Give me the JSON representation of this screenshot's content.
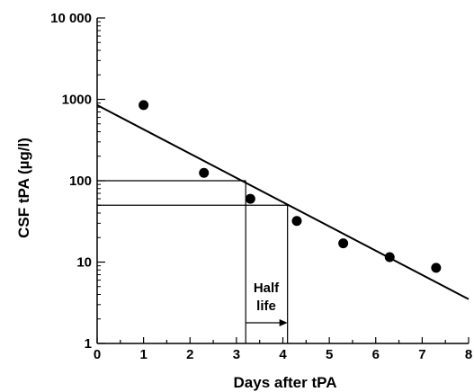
{
  "chart_data": {
    "type": "scatter",
    "xlabel": "Days after tPA",
    "ylabel": "CSF tPA (µg/l)",
    "xlim": [
      0,
      8
    ],
    "ylim": [
      1,
      10000
    ],
    "yscale": "log",
    "x_ticks": [
      0,
      1,
      2,
      3,
      4,
      5,
      6,
      7,
      8
    ],
    "x_tick_labels": [
      "0",
      "1",
      "2",
      "3",
      "4",
      "5",
      "6",
      "7",
      "8"
    ],
    "y_ticks": [
      1,
      10,
      100,
      1000,
      10000
    ],
    "y_tick_labels": [
      "1",
      "10",
      "100",
      "1000",
      "10 000"
    ],
    "grid": false,
    "series": [
      {
        "type": "scatter",
        "x": [
          1.0,
          2.3,
          3.3,
          4.3,
          5.3,
          6.3,
          7.3
        ],
        "y": [
          850,
          125,
          60,
          32,
          17,
          11.5,
          8.5
        ]
      },
      {
        "type": "line",
        "x": [
          0,
          8
        ],
        "y": [
          850,
          3.5
        ]
      }
    ],
    "annotations": {
      "half_life_label": [
        "Half",
        "life"
      ],
      "guide_lines": [
        {
          "y": 100,
          "x_end": 3.2
        },
        {
          "y": 50,
          "x_end": 4.1
        }
      ],
      "half_life_arrow": {
        "from": 3.2,
        "to": 4.1
      }
    },
    "colors": {
      "ink": "#000000",
      "background": "#ffffff"
    }
  }
}
